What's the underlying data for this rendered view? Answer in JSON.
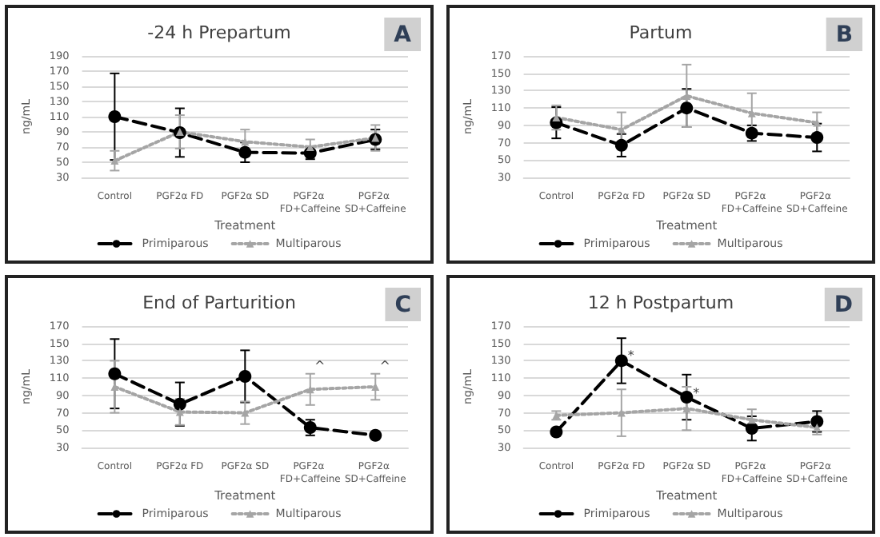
{
  "chart_data": [
    {
      "type": "line",
      "title": "-24 h Prepartum",
      "xlabel": "Treatment",
      "ylabel": "ng/mL",
      "categories": [
        "Control",
        "PGF2α FD",
        "PGF2α SD",
        "PGF2α FD+Caffeine",
        "PGF2α SD+Caffeine"
      ],
      "ylim": [
        30,
        190
      ],
      "yticks": [
        30,
        50,
        70,
        90,
        110,
        130,
        150,
        170,
        190
      ],
      "grid": "y",
      "legend": "bottom",
      "annotations": [
        "A"
      ],
      "series": [
        {
          "name": "Primiparous",
          "color": "#000000",
          "marker": "circle",
          "line_style": "dashed",
          "values": [
            110,
            89,
            63,
            62,
            80
          ],
          "errors": [
            57,
            32,
            13,
            8,
            13
          ]
        },
        {
          "name": "Multiparous",
          "color": "#a5a5a5",
          "marker": "triangle",
          "line_style": "dotted",
          "values": [
            52,
            90,
            77,
            70,
            82
          ],
          "errors": [
            13,
            22,
            16,
            10,
            17
          ]
        }
      ]
    },
    {
      "type": "line",
      "title": "Partum",
      "xlabel": "Treatment",
      "ylabel": "ng/mL",
      "categories": [
        "Control",
        "PGF2α FD",
        "PGF2α SD",
        "PGF2α FD+Caffeine",
        "PGF2α SD+Caffeine"
      ],
      "ylim": [
        30,
        170
      ],
      "yticks": [
        30,
        50,
        70,
        90,
        110,
        130,
        150,
        170
      ],
      "grid": "y",
      "legend": "bottom",
      "annotations": [
        "B"
      ],
      "series": [
        {
          "name": "Primiparous",
          "color": "#000000",
          "marker": "circle",
          "line_style": "dashed",
          "values": [
            93,
            67,
            110,
            81,
            76
          ],
          "errors": [
            18,
            13,
            22,
            9,
            16
          ]
        },
        {
          "name": "Multiparous",
          "color": "#a5a5a5",
          "marker": "triangle",
          "line_style": "dotted",
          "values": [
            99,
            85,
            124,
            104,
            93
          ],
          "errors": [
            14,
            20,
            36,
            23,
            12
          ]
        }
      ]
    },
    {
      "type": "line",
      "title": "End of Parturition",
      "xlabel": "Treatment",
      "ylabel": "ng/mL",
      "categories": [
        "Control",
        "PGF2α FD",
        "PGF2α SD",
        "PGF2α FD+Caffeine",
        "PGF2α SD+Caffeine"
      ],
      "ylim": [
        30,
        170
      ],
      "yticks": [
        30,
        50,
        70,
        90,
        110,
        130,
        150,
        170
      ],
      "grid": "y",
      "legend": "bottom",
      "annotations": [
        "C",
        {
          "text": "^",
          "x": "PGF2α FD+Caffeine",
          "y": 124
        },
        {
          "text": "^",
          "x": "PGF2α SD+Caffeine",
          "y": 124
        }
      ],
      "series": [
        {
          "name": "Primiparous",
          "color": "#000000",
          "marker": "circle",
          "line_style": "dashed",
          "values": [
            115,
            80,
            112,
            53,
            44
          ],
          "errors": [
            40,
            25,
            30,
            9,
            3
          ]
        },
        {
          "name": "Multiparous",
          "color": "#a5a5a5",
          "marker": "triangle",
          "line_style": "dotted",
          "values": [
            100,
            71,
            70,
            97,
            100
          ],
          "errors": [
            30,
            15,
            13,
            18,
            15
          ]
        }
      ]
    },
    {
      "type": "line",
      "title": "12 h Postpartum",
      "xlabel": "Treatment",
      "ylabel": "ng/mL",
      "categories": [
        "Control",
        "PGF2α FD",
        "PGF2α SD",
        "PGF2α FD+Caffeine",
        "PGF2α SD+Caffeine"
      ],
      "ylim": [
        30,
        170
      ],
      "yticks": [
        30,
        50,
        70,
        90,
        110,
        130,
        150,
        170
      ],
      "grid": "y",
      "legend": "bottom",
      "annotations": [
        "D",
        {
          "text": "*",
          "x": "PGF2α FD",
          "y": 136
        },
        {
          "text": "*",
          "x": "PGF2α SD",
          "y": 93
        }
      ],
      "series": [
        {
          "name": "Primiparous",
          "color": "#000000",
          "marker": "circle",
          "line_style": "dashed",
          "values": [
            48,
            130,
            88,
            52,
            60
          ],
          "errors": [
            3,
            26,
            26,
            14,
            12
          ]
        },
        {
          "name": "Multiparous",
          "color": "#a5a5a5",
          "marker": "triangle",
          "line_style": "dotted",
          "values": [
            67,
            70,
            75,
            62,
            53
          ],
          "errors": [
            5,
            27,
            25,
            12,
            8
          ]
        }
      ]
    }
  ]
}
